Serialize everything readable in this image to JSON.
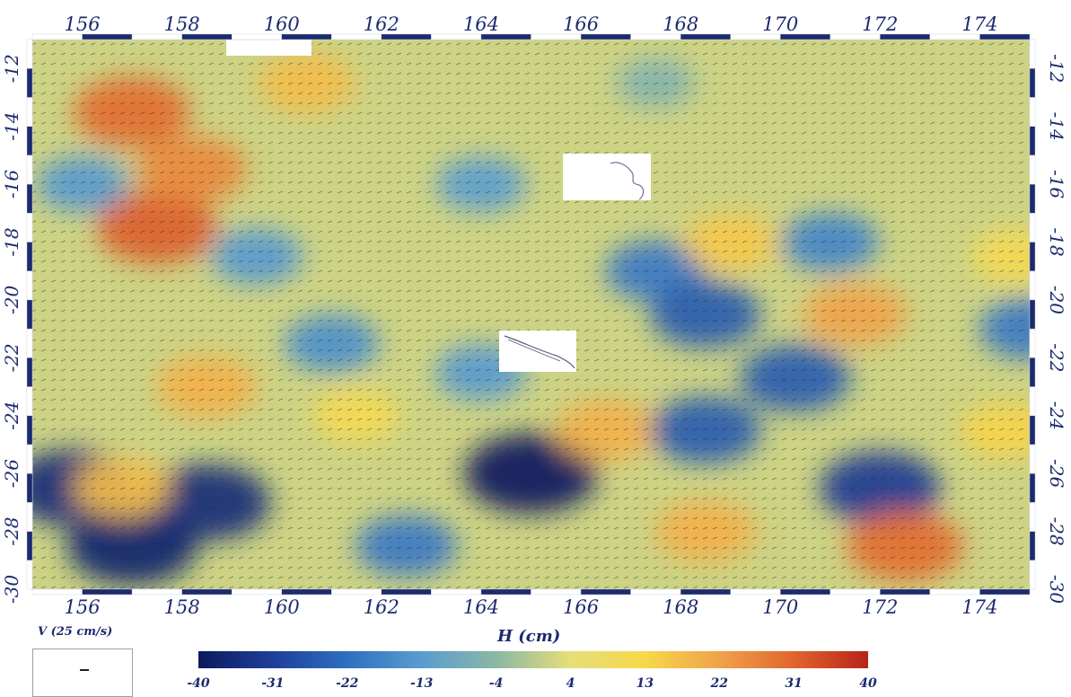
{
  "map": {
    "x_axis": {
      "ticks": [
        "156",
        "158",
        "160",
        "162",
        "164",
        "166",
        "168",
        "170",
        "172",
        "174"
      ]
    },
    "y_axis": {
      "ticks": [
        "-12",
        "-14",
        "-16",
        "-18",
        "-20",
        "-22",
        "-24",
        "-26",
        "-28",
        "-30"
      ]
    },
    "velocity_legend": {
      "label": "V (25 cm/s)"
    },
    "colorbar": {
      "title": "H (cm)",
      "ticks": [
        "-40",
        "-31",
        "-22",
        "-13",
        "-4",
        "4",
        "13",
        "22",
        "31",
        "40"
      ],
      "colors": [
        "#0b1a5e",
        "#1e3f9a",
        "#2f6fc0",
        "#5a9cd0",
        "#8bb7a5",
        "#e6de78",
        "#f7d84a",
        "#f0a24a",
        "#e0652e",
        "#b8231a"
      ]
    }
  },
  "chart_data": {
    "type": "heatmap",
    "xlabel": "",
    "ylabel": "",
    "xlim": [
      155,
      175
    ],
    "ylim": [
      -30,
      -11
    ],
    "colorbar_label": "H (cm)",
    "colorbar_range": [
      -40,
      40
    ],
    "vector_scale_label": "V (25 cm/s)",
    "features": [
      {
        "lon": 157,
        "lat": -13.5,
        "value": 30
      },
      {
        "lon": 157.5,
        "lat": -17.5,
        "value": 32
      },
      {
        "lon": 158.2,
        "lat": -15.5,
        "value": 26
      },
      {
        "lon": 160.5,
        "lat": -12.5,
        "value": 18
      },
      {
        "lon": 156,
        "lat": -16,
        "value": -14
      },
      {
        "lon": 159.5,
        "lat": -18.5,
        "value": -14
      },
      {
        "lon": 164,
        "lat": -16,
        "value": -13
      },
      {
        "lon": 167.5,
        "lat": -12.5,
        "value": -6
      },
      {
        "lon": 167.5,
        "lat": -19,
        "value": -20
      },
      {
        "lon": 168.5,
        "lat": -20.5,
        "value": -26
      },
      {
        "lon": 171,
        "lat": -18,
        "value": -18
      },
      {
        "lon": 174.7,
        "lat": -18.5,
        "value": 12
      },
      {
        "lon": 169,
        "lat": -18,
        "value": 16
      },
      {
        "lon": 171.5,
        "lat": -20.5,
        "value": 22
      },
      {
        "lon": 158.5,
        "lat": -23,
        "value": 20
      },
      {
        "lon": 155.8,
        "lat": -26.5,
        "value": -36
      },
      {
        "lon": 157,
        "lat": -28.5,
        "value": -38
      },
      {
        "lon": 158.5,
        "lat": -27,
        "value": -36
      },
      {
        "lon": 156.8,
        "lat": -26.5,
        "value": 18
      },
      {
        "lon": 165,
        "lat": -26,
        "value": -40
      },
      {
        "lon": 164,
        "lat": -22.5,
        "value": -14
      },
      {
        "lon": 166.5,
        "lat": -24.5,
        "value": 20
      },
      {
        "lon": 168.5,
        "lat": -28,
        "value": 20
      },
      {
        "lon": 172,
        "lat": -26.5,
        "value": -32
      },
      {
        "lon": 172.5,
        "lat": -28.5,
        "value": 30
      },
      {
        "lon": 175,
        "lat": -21,
        "value": -20
      },
      {
        "lon": 174.5,
        "lat": -24.5,
        "value": 14
      },
      {
        "lon": 168.5,
        "lat": -24.5,
        "value": -26
      },
      {
        "lon": 161,
        "lat": -21.5,
        "value": -16
      },
      {
        "lon": 162.5,
        "lat": -28.5,
        "value": -20
      },
      {
        "lon": 161.5,
        "lat": -24,
        "value": 12
      },
      {
        "lon": 170.3,
        "lat": -22.7,
        "value": -26
      }
    ],
    "background_value": 2
  }
}
